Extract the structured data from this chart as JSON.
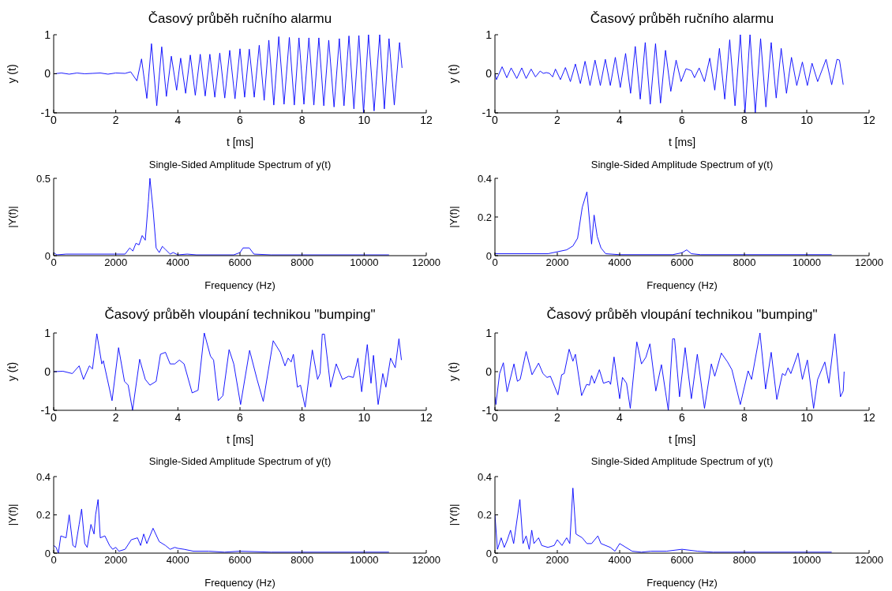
{
  "chart_data": [
    {
      "type": "line",
      "title": "Časový průběh ručního alarmu",
      "xlabel": "t [ms]",
      "ylabel": "y (t)",
      "xlim": [
        0,
        12
      ],
      "xticks": [
        0,
        2,
        4,
        6,
        8,
        10,
        12
      ],
      "ylim": [
        -1,
        1
      ],
      "yticks": [
        -1,
        0,
        1
      ],
      "marker": "none",
      "series": [
        {
          "color": "#0000ff",
          "x": [
            0,
            0.25,
            0.5,
            0.75,
            1,
            1.25,
            1.5,
            1.75,
            2,
            2.3,
            2.48,
            2.68,
            2.83,
            3.0,
            3.15,
            3.32,
            3.48,
            3.63,
            3.79,
            3.96,
            4.09,
            4.25,
            4.4,
            4.56,
            4.72,
            4.88,
            5.03,
            5.19,
            5.35,
            5.51,
            5.67,
            5.84,
            6.0,
            6.15,
            6.3,
            6.46,
            6.62,
            6.78,
            6.93,
            7.09,
            7.25,
            7.42,
            7.59,
            7.75,
            7.9,
            8.06,
            8.22,
            8.38,
            8.54,
            8.7,
            8.86,
            9.03,
            9.2,
            9.35,
            9.51,
            9.67,
            9.83,
            9.98,
            10.14,
            10.32,
            10.5,
            10.65,
            10.8,
            10.97,
            11.14,
            11.22
          ],
          "values": [
            0,
            0.02,
            -0.01,
            0.02,
            0,
            0.01,
            0.02,
            -0.01,
            0.02,
            0.01,
            0.05,
            -0.18,
            0.38,
            -0.63,
            0.77,
            -0.82,
            0.69,
            -0.58,
            0.45,
            -0.42,
            0.4,
            -0.5,
            0.48,
            -0.55,
            0.5,
            -0.57,
            0.5,
            -0.6,
            0.53,
            -0.62,
            0.6,
            -0.64,
            0.64,
            -0.6,
            0.63,
            -0.6,
            0.73,
            -0.68,
            0.86,
            -0.8,
            0.95,
            -0.78,
            0.93,
            -0.8,
            0.92,
            -0.78,
            0.92,
            -0.8,
            0.92,
            -0.82,
            0.86,
            -0.85,
            0.9,
            -0.82,
            0.97,
            -0.9,
            0.98,
            -1.0,
            1.0,
            -0.95,
            1.0,
            -0.9,
            0.9,
            -0.8,
            0.8,
            0.15
          ]
        }
      ]
    },
    {
      "type": "line",
      "title": "Časový průběh ručního alarmu",
      "xlabel": "t [ms]",
      "ylabel": "y (t)",
      "xlim": [
        0,
        12
      ],
      "xticks": [
        0,
        2,
        4,
        6,
        8,
        10,
        12
      ],
      "ylim": [
        -1,
        1
      ],
      "yticks": [
        -1,
        0,
        1
      ],
      "marker": "none",
      "series": [
        {
          "color": "#0000ff",
          "x": [
            0,
            0.05,
            0.23,
            0.38,
            0.52,
            0.7,
            0.86,
            1.0,
            1.16,
            1.3,
            1.45,
            1.55,
            1.65,
            1.75,
            1.85,
            1.94,
            2.1,
            2.26,
            2.42,
            2.58,
            2.74,
            2.89,
            3.05,
            3.21,
            3.38,
            3.54,
            3.7,
            3.86,
            4.02,
            4.19,
            4.35,
            4.5,
            4.66,
            4.82,
            4.98,
            5.15,
            5.31,
            5.47,
            5.64,
            5.81,
            5.97,
            6.13,
            6.3,
            6.4,
            6.55,
            6.72,
            6.89,
            7.05,
            7.2,
            7.37,
            7.53,
            7.7,
            7.87,
            8.02,
            8.18,
            8.35,
            8.52,
            8.69,
            8.86,
            9.02,
            9.18,
            9.35,
            9.51,
            9.68,
            9.86,
            10.02,
            10.17,
            10.35,
            10.62,
            10.8,
            10.97,
            11.05,
            11.17
          ],
          "values": [
            0,
            -0.15,
            0.18,
            -0.1,
            0.15,
            -0.12,
            0.15,
            -0.12,
            0.12,
            -0.08,
            0.07,
            0.01,
            0.03,
            0.01,
            -0.08,
            0.12,
            -0.15,
            0.16,
            -0.2,
            0.25,
            -0.25,
            0.32,
            -0.3,
            0.35,
            -0.3,
            0.37,
            -0.3,
            0.42,
            -0.35,
            0.52,
            -0.5,
            0.7,
            -0.65,
            0.8,
            -0.78,
            0.77,
            -0.75,
            0.6,
            -0.45,
            0.35,
            -0.2,
            0.13,
            0.08,
            -0.1,
            0.15,
            -0.2,
            0.4,
            -0.42,
            0.65,
            -0.65,
            0.87,
            -0.82,
            1.0,
            -1.0,
            1.0,
            -1.0,
            0.9,
            -0.85,
            0.8,
            -0.62,
            0.65,
            -0.5,
            0.42,
            -0.3,
            0.3,
            -0.3,
            0.27,
            -0.2,
            0.37,
            -0.28,
            0.37,
            0.35,
            -0.28
          ]
        }
      ]
    },
    {
      "type": "line",
      "title": "Single-Sided Amplitude Spectrum of y(t)",
      "xlabel": "Frequency (Hz)",
      "ylabel": "|Y(f)|",
      "xlim": [
        0,
        12000
      ],
      "xticks": [
        0,
        2000,
        4000,
        6000,
        8000,
        10000,
        12000
      ],
      "ylim": [
        0,
        0.5
      ],
      "yticks": [
        0,
        0.5
      ],
      "marker": "none",
      "series": [
        {
          "color": "#0000ff",
          "x": [
            0,
            100,
            400,
            2000,
            2300,
            2450,
            2550,
            2650,
            2750,
            2850,
            2950,
            3050,
            3100,
            3200,
            3300,
            3400,
            3500,
            3600,
            3750,
            3850,
            4000,
            4300,
            4600,
            5800,
            6000,
            6100,
            6300,
            6450,
            7000,
            10800
          ],
          "values": [
            0.02,
            0.005,
            0.01,
            0.01,
            0.01,
            0.05,
            0.03,
            0.08,
            0.07,
            0.13,
            0.1,
            0.35,
            0.5,
            0.3,
            0.05,
            0.02,
            0.06,
            0.04,
            0.01,
            0.02,
            0.005,
            0.01,
            0.005,
            0.005,
            0.02,
            0.05,
            0.05,
            0.01,
            0.005,
            0.005
          ]
        }
      ]
    },
    {
      "type": "line",
      "title": "Single-Sided Amplitude Spectrum of y(t)",
      "xlabel": "Frequency (Hz)",
      "ylabel": "|Y(f)|",
      "xlim": [
        0,
        12000
      ],
      "xticks": [
        0,
        2000,
        4000,
        6000,
        8000,
        10000,
        12000
      ],
      "ylim": [
        0,
        0.4
      ],
      "yticks": [
        0,
        0.2,
        0.4
      ],
      "marker": "none",
      "series": [
        {
          "color": "#0000ff",
          "x": [
            0,
            1700,
            2000,
            2300,
            2500,
            2650,
            2800,
            2950,
            3100,
            3180,
            3280,
            3400,
            3550,
            4000,
            5700,
            6000,
            6150,
            6300,
            6600,
            10800
          ],
          "values": [
            0.01,
            0.01,
            0.02,
            0.03,
            0.05,
            0.09,
            0.25,
            0.33,
            0.06,
            0.21,
            0.1,
            0.04,
            0.01,
            0.005,
            0.005,
            0.015,
            0.03,
            0.01,
            0.005,
            0.005
          ]
        }
      ]
    },
    {
      "type": "line",
      "title": "Časový průběh vloupání technikou \"bumping\"",
      "xlabel": "t [ms]",
      "ylabel": "y (t)",
      "xlim": [
        0,
        12
      ],
      "xticks": [
        0,
        2,
        4,
        6,
        8,
        10,
        12
      ],
      "ylim": [
        -1,
        1
      ],
      "yticks": [
        -1,
        0,
        1
      ],
      "marker": "none",
      "series": [
        {
          "color": "#0000ff",
          "x": [
            0,
            0.3,
            0.6,
            0.82,
            0.96,
            1.15,
            1.25,
            1.39,
            1.55,
            1.6,
            1.88,
            2.09,
            2.28,
            2.4,
            2.54,
            2.77,
            2.95,
            3.1,
            3.3,
            3.44,
            3.6,
            3.75,
            3.9,
            4.05,
            4.2,
            4.46,
            4.65,
            4.85,
            5.05,
            5.15,
            5.3,
            5.45,
            5.65,
            5.8,
            6.02,
            6.31,
            6.55,
            6.75,
            7.07,
            7.3,
            7.45,
            7.55,
            7.65,
            7.72,
            7.85,
            7.95,
            8.1,
            8.33,
            8.5,
            8.58,
            8.65,
            8.72,
            8.92,
            9.1,
            9.3,
            9.5,
            9.65,
            9.8,
            9.92,
            10.1,
            10.22,
            10.3,
            10.45,
            10.6,
            10.7,
            10.85,
            11.0,
            11.12,
            11.2
          ],
          "values": [
            0,
            0.01,
            -0.05,
            0.15,
            -0.2,
            0.15,
            0.07,
            0.98,
            0.2,
            0.28,
            -0.75,
            0.62,
            -0.25,
            -0.35,
            -1.0,
            0.32,
            -0.2,
            -0.35,
            -0.25,
            0.45,
            0.5,
            0.2,
            0.2,
            0.3,
            0.2,
            -0.55,
            -0.48,
            1.0,
            0.4,
            0.3,
            -0.75,
            -0.62,
            0.57,
            0.2,
            -0.85,
            0.55,
            -0.2,
            -0.77,
            0.8,
            0.5,
            0.15,
            0.35,
            0.25,
            0.45,
            -0.4,
            -0.35,
            -0.92,
            0.56,
            -0.2,
            -0.05,
            0.97,
            0.97,
            -0.4,
            0.2,
            -0.2,
            -0.12,
            -0.15,
            0.35,
            -0.52,
            0.7,
            -0.3,
            0.42,
            -0.85,
            -0.05,
            -0.4,
            0.35,
            0.1,
            0.85,
            0.3
          ]
        }
      ]
    },
    {
      "type": "line",
      "title": "Časový průběh vloupání technikou \"bumping\"",
      "xlabel": "t [ms]",
      "ylabel": "y (t)",
      "xlim": [
        0,
        12
      ],
      "xticks": [
        0,
        2,
        4,
        6,
        8,
        10,
        12
      ],
      "ylim": [
        -1,
        1
      ],
      "yticks": [
        -1,
        0,
        1
      ],
      "marker": "none",
      "series": [
        {
          "color": "#0000ff",
          "x": [
            0,
            0.03,
            0.15,
            0.27,
            0.39,
            0.61,
            0.72,
            0.81,
            1.0,
            1.19,
            1.4,
            1.54,
            1.67,
            1.78,
            2.02,
            2.14,
            2.22,
            2.38,
            2.5,
            2.58,
            2.78,
            2.94,
            3.03,
            3.1,
            3.19,
            3.35,
            3.48,
            3.66,
            3.71,
            3.82,
            4.0,
            4.09,
            4.22,
            4.34,
            4.55,
            4.7,
            4.84,
            4.97,
            5.16,
            5.34,
            5.56,
            5.7,
            5.76,
            5.92,
            6.1,
            6.3,
            6.49,
            6.72,
            6.94,
            7.05,
            7.26,
            7.46,
            7.6,
            7.87,
            8.12,
            8.23,
            8.5,
            8.68,
            8.86,
            9.04,
            9.22,
            9.31,
            9.4,
            9.49,
            9.72,
            9.86,
            10.02,
            10.22,
            10.35,
            10.58,
            10.71,
            10.9,
            11.08,
            11.17,
            11.2
          ],
          "values": [
            -0.65,
            -0.85,
            -0.05,
            0.23,
            -0.52,
            0.2,
            -0.25,
            -0.2,
            0.52,
            -0.08,
            0.22,
            -0.05,
            -0.15,
            -0.12,
            -0.6,
            -0.08,
            -0.05,
            0.58,
            0.27,
            0.45,
            -0.62,
            -0.33,
            -0.35,
            -0.1,
            -0.3,
            0.05,
            -0.3,
            -0.25,
            -0.33,
            0.38,
            -0.7,
            -0.15,
            -0.3,
            -0.95,
            0.77,
            0.2,
            0.37,
            0.72,
            -0.5,
            0.18,
            -1.0,
            0.85,
            0.85,
            -0.65,
            0.62,
            -0.7,
            0.45,
            -0.95,
            0.2,
            -0.12,
            0.48,
            0.25,
            0.05,
            -0.85,
            0.02,
            -0.2,
            1.0,
            -0.45,
            0.5,
            -0.72,
            -0.05,
            -0.1,
            0.1,
            -0.05,
            0.48,
            -0.2,
            0.3,
            -0.95,
            -0.2,
            0.25,
            -0.3,
            0.98,
            -0.65,
            -0.5,
            0.0
          ]
        }
      ]
    },
    {
      "type": "line",
      "title": "Single-Sided Amplitude Spectrum of y(t)",
      "xlabel": "Frequency (Hz)",
      "ylabel": "|Y(f)|",
      "xlim": [
        0,
        12000
      ],
      "xticks": [
        0,
        2000,
        4000,
        6000,
        8000,
        10000,
        12000
      ],
      "ylim": [
        0,
        0.4
      ],
      "yticks": [
        0,
        0.2,
        0.4
      ],
      "marker": "none",
      "series": [
        {
          "color": "#0000ff",
          "x": [
            0,
            80,
            150,
            230,
            400,
            500,
            620,
            700,
            820,
            900,
            1000,
            1080,
            1200,
            1300,
            1350,
            1430,
            1500,
            1650,
            1800,
            1900,
            2000,
            2100,
            2300,
            2500,
            2700,
            2800,
            2900,
            3000,
            3200,
            3400,
            3600,
            3750,
            3900,
            4000,
            4200,
            4500,
            5000,
            5500,
            6000,
            7000,
            10800
          ],
          "values": [
            0.04,
            0.03,
            0.0,
            0.09,
            0.08,
            0.2,
            0.04,
            0.03,
            0.15,
            0.23,
            0.05,
            0.03,
            0.15,
            0.1,
            0.2,
            0.28,
            0.08,
            0.09,
            0.04,
            0.02,
            0.03,
            0.01,
            0.02,
            0.07,
            0.08,
            0.04,
            0.1,
            0.05,
            0.13,
            0.06,
            0.04,
            0.02,
            0.03,
            0.025,
            0.02,
            0.01,
            0.01,
            0.005,
            0.01,
            0.005,
            0.005
          ]
        }
      ]
    },
    {
      "type": "line",
      "title": "Single-Sided Amplitude Spectrum of y(t)",
      "xlabel": "Frequency (Hz)",
      "ylabel": "|Y(f)|",
      "xlim": [
        0,
        12000
      ],
      "xticks": [
        0,
        2000,
        4000,
        6000,
        8000,
        10000,
        12000
      ],
      "ylim": [
        0,
        0.4
      ],
      "yticks": [
        0,
        0.2,
        0.4
      ],
      "marker": "none",
      "series": [
        {
          "color": "#0000ff",
          "x": [
            0,
            80,
            200,
            300,
            400,
            500,
            600,
            800,
            900,
            1000,
            1100,
            1180,
            1250,
            1400,
            1500,
            1700,
            1900,
            2000,
            2150,
            2300,
            2400,
            2500,
            2600,
            2800,
            2950,
            3100,
            3300,
            3400,
            3700,
            3850,
            4000,
            4200,
            4400,
            4700,
            5000,
            5500,
            6000,
            6500,
            7000,
            10800
          ],
          "values": [
            0.2,
            0.02,
            0.08,
            0.03,
            0.07,
            0.12,
            0.05,
            0.28,
            0.05,
            0.09,
            0.02,
            0.12,
            0.05,
            0.08,
            0.04,
            0.03,
            0.04,
            0.07,
            0.04,
            0.08,
            0.05,
            0.34,
            0.1,
            0.08,
            0.05,
            0.05,
            0.09,
            0.05,
            0.03,
            0.01,
            0.05,
            0.03,
            0.01,
            0.005,
            0.01,
            0.01,
            0.02,
            0.01,
            0.005,
            0.005
          ]
        }
      ]
    }
  ]
}
